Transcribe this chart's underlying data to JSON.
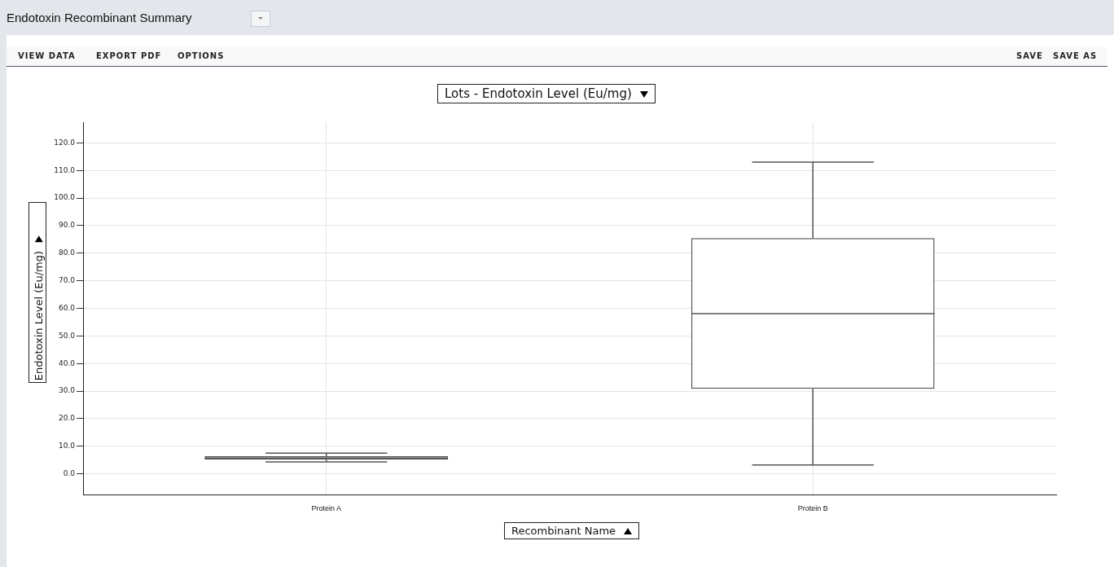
{
  "chart_data": {
    "type": "box",
    "title": "Endotoxin Recombinant Summary",
    "subtitle": "Lots - Endotoxin Level (Eu/mg)",
    "xlabel": "Recombinant Name",
    "ylabel": "Endotoxin Level (Eu/mg)",
    "annotations": [
      "VIEW DATA",
      "EXPORT PDF",
      "OPTIONS",
      "SAVE",
      "SAVE AS"
    ],
    "categories": [
      "Protein A",
      "Protein B"
    ],
    "boxes": [
      {
        "low": 4.3,
        "q1": 5.1,
        "median": 5.7,
        "q3": 6.4,
        "high": 7.5
      },
      {
        "low": 3.2,
        "q1": 30.8,
        "median": 58.1,
        "q3": 85.5,
        "high": 113
      }
    ],
    "color": "#555555",
    "ylim": [
      -7.5,
      127.5
    ],
    "yticks": [
      {
        "value": 0,
        "label": "0.0"
      },
      {
        "value": 10,
        "label": "10.0"
      },
      {
        "value": 20,
        "label": "20.0"
      },
      {
        "value": 30,
        "label": "30.0"
      },
      {
        "value": 40,
        "label": "40.0"
      },
      {
        "value": 50,
        "label": "50.0"
      },
      {
        "value": 60,
        "label": "60.0"
      },
      {
        "value": 70,
        "label": "70.0"
      },
      {
        "value": 80,
        "label": "80.0"
      },
      {
        "value": 90,
        "label": "90.0"
      },
      {
        "value": 100,
        "label": "100.0"
      },
      {
        "value": 110,
        "label": "110.0"
      },
      {
        "value": 120,
        "label": "120.0"
      }
    ],
    "grid": true
  }
}
